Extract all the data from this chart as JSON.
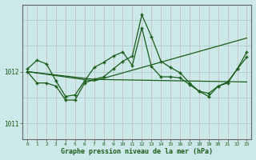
{
  "title": "Graphe pression niveau de la mer (hPa)",
  "bg_color": "#cce8e8",
  "grid_h_color": "#aacccc",
  "grid_v_color": "#c8b8b8",
  "line_color": "#1a5c1a",
  "marker": "+",
  "xlim": [
    -0.5,
    23.5
  ],
  "ylim": [
    1010.7,
    1013.3
  ],
  "yticks": [
    1011,
    1012
  ],
  "xticks": [
    0,
    1,
    2,
    3,
    4,
    5,
    6,
    7,
    8,
    9,
    10,
    11,
    12,
    13,
    14,
    15,
    16,
    17,
    18,
    19,
    20,
    21,
    22,
    23
  ],
  "line1_x": [
    0,
    1,
    2,
    3,
    4,
    5,
    6,
    7,
    8,
    9,
    10,
    11,
    12,
    13,
    14,
    15,
    16,
    17,
    18,
    19,
    20,
    21,
    22,
    23
  ],
  "line1_y": [
    1012.05,
    1012.22,
    1012.15,
    1011.82,
    1011.52,
    1011.55,
    1011.82,
    1012.08,
    1012.18,
    1012.3,
    1012.38,
    1012.12,
    1012.85,
    1012.1,
    1011.9,
    1011.9,
    1011.88,
    1011.75,
    1011.62,
    1011.58,
    1011.72,
    1011.78,
    1012.05,
    1012.28
  ],
  "line2_x": [
    0,
    1,
    2,
    3,
    4,
    5,
    6,
    7,
    8,
    9,
    10,
    11,
    12,
    13,
    14,
    15,
    16,
    17,
    18,
    19,
    20,
    21,
    22,
    23
  ],
  "line2_y": [
    1012.0,
    1011.78,
    1011.78,
    1011.72,
    1011.45,
    1011.45,
    1011.78,
    1011.85,
    1011.9,
    1012.05,
    1012.2,
    1012.3,
    1013.1,
    1012.68,
    1012.2,
    1012.08,
    1011.98,
    1011.78,
    1011.62,
    1011.52,
    1011.72,
    1011.8,
    1012.05,
    1012.38
  ],
  "line3_x": [
    0,
    7,
    23
  ],
  "line3_y": [
    1012.0,
    1011.82,
    1012.65
  ],
  "line4_x": [
    0,
    7,
    23
  ],
  "line4_y": [
    1012.0,
    1011.85,
    1011.8
  ]
}
